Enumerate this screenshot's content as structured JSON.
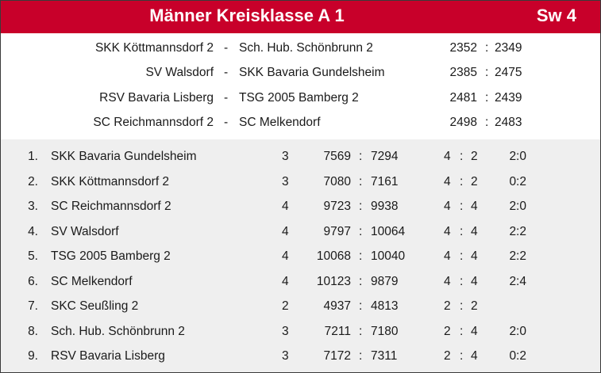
{
  "header": {
    "title": "Männer Kreisklasse A 1",
    "round": "Sw 4"
  },
  "matches": [
    {
      "home": "SKK Köttmannsdorf 2",
      "dash": "-",
      "away": "Sch. Hub. Schönbrunn 2",
      "score_home": "2352",
      "sep": ":",
      "score_away": "2349"
    },
    {
      "home": "SV Walsdorf",
      "dash": "-",
      "away": "SKK Bavaria Gundelsheim",
      "score_home": "2385",
      "sep": ":",
      "score_away": "2475"
    },
    {
      "home": "RSV Bavaria Lisberg",
      "dash": "-",
      "away": "TSG 2005 Bamberg 2",
      "score_home": "2481",
      "sep": ":",
      "score_away": "2439"
    },
    {
      "home": "SC Reichmannsdorf 2",
      "dash": "-",
      "away": "SC Melkendorf",
      "score_home": "2498",
      "sep": ":",
      "score_away": "2483"
    }
  ],
  "standings": [
    {
      "pos": "1.",
      "team": "SKK Bavaria Gundelsheim",
      "games": "3",
      "pins_for": "7569",
      "sep1": ":",
      "pins_against": "7294",
      "won": "4",
      "sep2": ":",
      "lost": "2",
      "sets": "2:0"
    },
    {
      "pos": "2.",
      "team": "SKK Köttmannsdorf 2",
      "games": "3",
      "pins_for": "7080",
      "sep1": ":",
      "pins_against": "7161",
      "won": "4",
      "sep2": ":",
      "lost": "2",
      "sets": "0:2"
    },
    {
      "pos": "3.",
      "team": "SC Reichmannsdorf 2",
      "games": "4",
      "pins_for": "9723",
      "sep1": ":",
      "pins_against": "9938",
      "won": "4",
      "sep2": ":",
      "lost": "4",
      "sets": "2:0"
    },
    {
      "pos": "4.",
      "team": "SV Walsdorf",
      "games": "4",
      "pins_for": "9797",
      "sep1": ":",
      "pins_against": "10064",
      "won": "4",
      "sep2": ":",
      "lost": "4",
      "sets": "2:2"
    },
    {
      "pos": "5.",
      "team": "TSG 2005 Bamberg 2",
      "games": "4",
      "pins_for": "10068",
      "sep1": ":",
      "pins_against": "10040",
      "won": "4",
      "sep2": ":",
      "lost": "4",
      "sets": "2:2"
    },
    {
      "pos": "6.",
      "team": "SC Melkendorf",
      "games": "4",
      "pins_for": "10123",
      "sep1": ":",
      "pins_against": "9879",
      "won": "4",
      "sep2": ":",
      "lost": "4",
      "sets": "2:4"
    },
    {
      "pos": "7.",
      "team": "SKC Seußling 2",
      "games": "2",
      "pins_for": "4937",
      "sep1": ":",
      "pins_against": "4813",
      "won": "2",
      "sep2": ":",
      "lost": "2",
      "sets": ""
    },
    {
      "pos": "8.",
      "team": "Sch. Hub. Schönbrunn 2",
      "games": "3",
      "pins_for": "7211",
      "sep1": ":",
      "pins_against": "7180",
      "won": "2",
      "sep2": ":",
      "lost": "4",
      "sets": "2:0"
    },
    {
      "pos": "9.",
      "team": "RSV Bavaria Lisberg",
      "games": "3",
      "pins_for": "7172",
      "sep1": ":",
      "pins_against": "7311",
      "won": "2",
      "sep2": ":",
      "lost": "4",
      "sets": "0:2"
    }
  ],
  "colors": {
    "header_bg": "#c8002a",
    "header_text": "#ffffff",
    "table_bg": "#efefef",
    "text": "#1a1a1a"
  }
}
